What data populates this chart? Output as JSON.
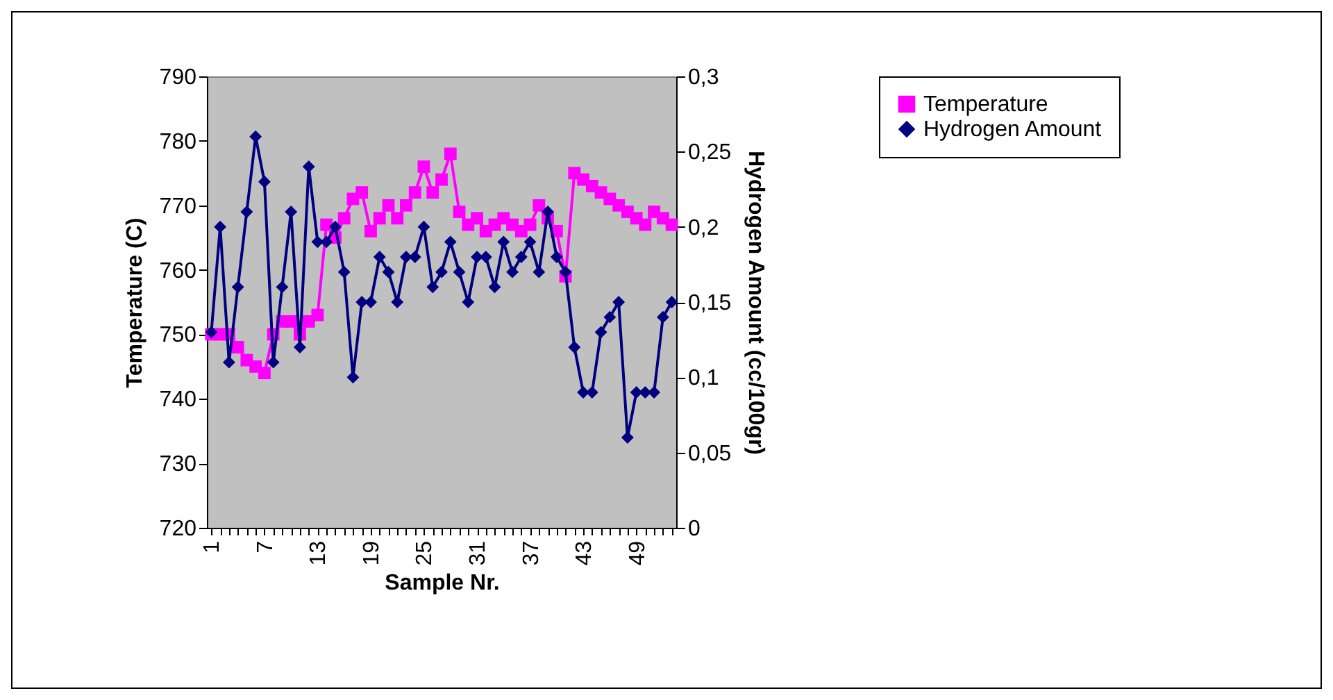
{
  "chart_data": {
    "type": "line",
    "xlabel": "Sample Nr.",
    "ylabel": "Temperature (C)",
    "y2label": "Hydrogen Amount (cc/100gr)",
    "categories": [
      "1",
      null,
      null,
      null,
      null,
      null,
      "7",
      null,
      null,
      null,
      null,
      null,
      "13",
      null,
      null,
      null,
      null,
      null,
      "19",
      null,
      null,
      null,
      null,
      null,
      "25",
      null,
      null,
      null,
      null,
      null,
      "31",
      null,
      null,
      null,
      null,
      null,
      "37",
      null,
      null,
      null,
      null,
      null,
      "43",
      null,
      null,
      null,
      null,
      null,
      "49",
      null,
      null,
      null,
      null
    ],
    "series": [
      {
        "name": "Temperature",
        "color": "#ff00ff",
        "marker": "square",
        "values": [
          750,
          750,
          750,
          748,
          746,
          745,
          744,
          750,
          752,
          752,
          750,
          752,
          753,
          767,
          765,
          768,
          771,
          772,
          766,
          768,
          770,
          768,
          770,
          772,
          776,
          772,
          774,
          778,
          769,
          767,
          768,
          766,
          767,
          768,
          767,
          766,
          767,
          770,
          768,
          766,
          759,
          775,
          774,
          773,
          772,
          771,
          770,
          769,
          768,
          767,
          769,
          768,
          767
        ]
      },
      {
        "name": "Hydrogen Amount",
        "color": "#000080",
        "marker": "diamond",
        "axis": "y2",
        "values": [
          0.13,
          0.2,
          0.11,
          0.16,
          0.21,
          0.26,
          0.23,
          0.11,
          0.16,
          0.21,
          0.12,
          0.24,
          0.19,
          0.19,
          0.2,
          0.17,
          0.1,
          0.15,
          0.15,
          0.18,
          0.17,
          0.15,
          0.18,
          0.18,
          0.2,
          0.16,
          0.17,
          0.19,
          0.17,
          0.15,
          0.18,
          0.18,
          0.16,
          0.19,
          0.17,
          0.18,
          0.19,
          0.17,
          0.21,
          0.18,
          0.17,
          0.12,
          0.09,
          0.09,
          0.13,
          0.14,
          0.15,
          0.06,
          0.09,
          0.09,
          0.09,
          0.14,
          0.15
        ]
      }
    ],
    "ylim": [
      720,
      790
    ],
    "yticks": [
      720,
      730,
      740,
      750,
      760,
      770,
      780,
      790
    ],
    "y2lim": [
      0,
      0.3
    ],
    "y2ticks": [
      {
        "value": 0,
        "label": "0"
      },
      {
        "value": 0.05,
        "label": "0,05"
      },
      {
        "value": 0.1,
        "label": "0,1"
      },
      {
        "value": 0.15,
        "label": "0,15"
      },
      {
        "value": 0.2,
        "label": "0,2"
      },
      {
        "value": 0.25,
        "label": "0,25"
      },
      {
        "value": 0.3,
        "label": "0,3"
      }
    ],
    "grid": false,
    "legend": "right"
  }
}
